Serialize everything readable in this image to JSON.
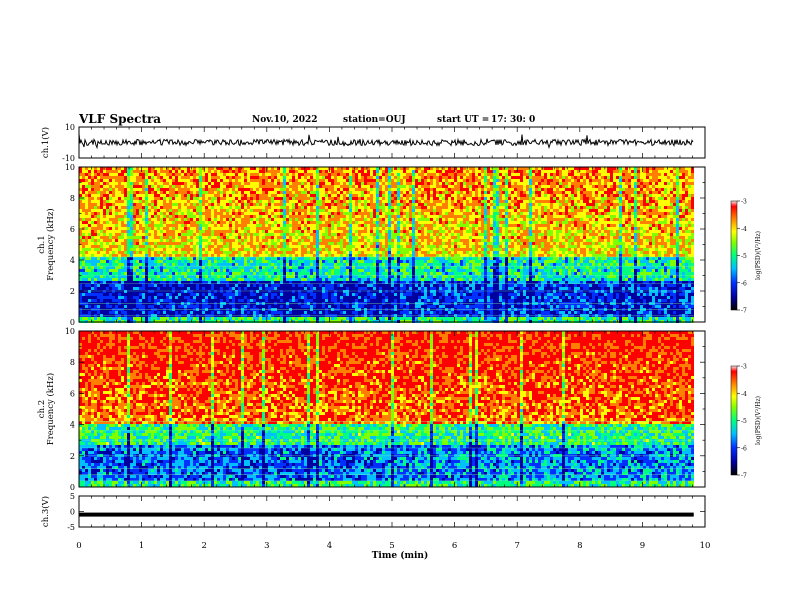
{
  "header": {
    "title": "VLF Spectra",
    "date": "Nov.10, 2022",
    "station": "station=OUJ",
    "start_label": "start  UT =",
    "start_time": "17: 30: 0"
  },
  "colors": {
    "cmap": [
      "#000000",
      "#0000a0",
      "#0030ff",
      "#00c0ff",
      "#00ff80",
      "#80ff00",
      "#ffff00",
      "#ff8000",
      "#ff0000",
      "#ffffff"
    ],
    "trace": "#000000",
    "frame": "#000000"
  },
  "chart_data": [
    {
      "type": "line",
      "panel": "ch1-waveform",
      "ylabel": "ch.1(V)",
      "ylim": [
        -10,
        10
      ],
      "yticks": [
        "10",
        "-10"
      ],
      "xlim": [
        0,
        10
      ],
      "trace_range_x": [
        0,
        9.82
      ],
      "trace_level_approx": 0
    },
    {
      "type": "heatmap",
      "panel": "ch1-spectrogram",
      "ylabel": "ch.1\nFrequency (kHz)",
      "ylabel_lines": [
        "ch.1",
        "Frequency (kHz)"
      ],
      "ylim": [
        0,
        10
      ],
      "yticks": [
        "0",
        "2",
        "4",
        "6",
        "8",
        "10"
      ],
      "xlim": [
        0,
        10
      ],
      "colorbar": {
        "label": "log(PSD)(V²/Hz)",
        "range": [
          -7,
          -3
        ],
        "ticks": [
          "-3",
          "-4",
          "-5",
          "-6",
          "-7"
        ]
      }
    },
    {
      "type": "heatmap",
      "panel": "ch2-spectrogram",
      "ylabel": "ch.2\nFrequency (kHz)",
      "ylabel_lines": [
        "ch.2",
        "Frequency (kHz)"
      ],
      "ylim": [
        0,
        10
      ],
      "yticks": [
        "0",
        "2",
        "4",
        "6",
        "8",
        "10"
      ],
      "xlim": [
        0,
        10
      ],
      "colorbar": {
        "label": "log(PSD)(V²/Hz)",
        "range": [
          -7,
          -3
        ],
        "ticks": [
          "-3",
          "-4",
          "-5",
          "-6",
          "-7"
        ]
      }
    },
    {
      "type": "line",
      "panel": "ch3-waveform",
      "ylabel": "ch.3(V)",
      "ylim": [
        -5,
        5
      ],
      "yticks": [
        "5",
        "0",
        "-5"
      ],
      "xlim": [
        0,
        10
      ],
      "trace_range_x": [
        0,
        9.82
      ],
      "trace_level_approx": -1
    }
  ],
  "xaxis": {
    "label": "Time  (min)",
    "ticks": [
      "0",
      "1",
      "2",
      "3",
      "4",
      "5",
      "6",
      "7",
      "8",
      "9",
      "10"
    ]
  }
}
